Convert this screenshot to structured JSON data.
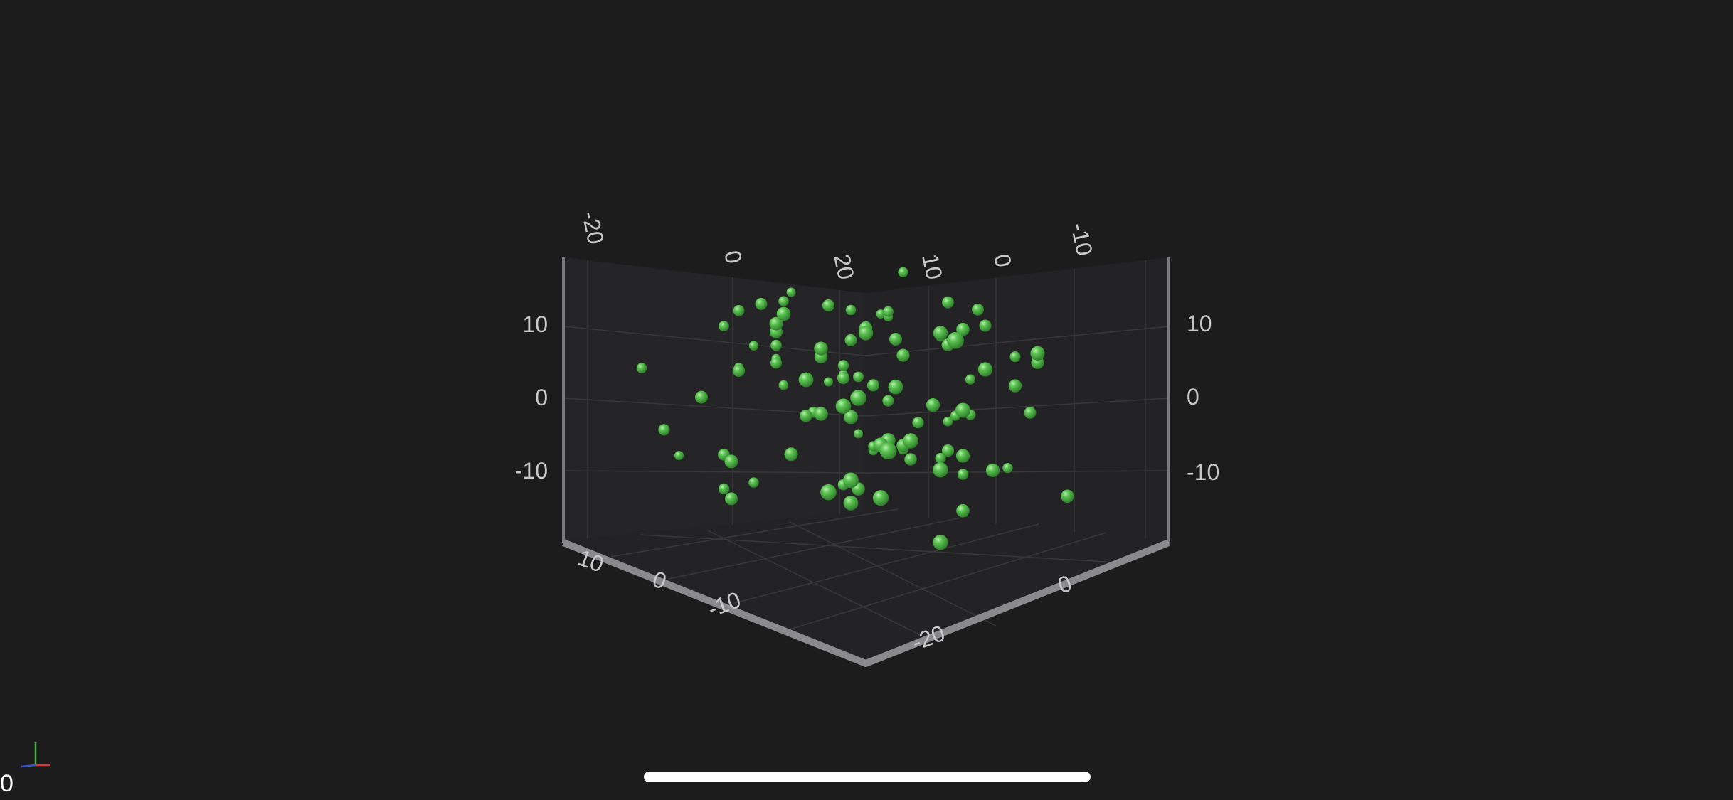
{
  "chart_data": {
    "type": "scatter3d",
    "series": [
      {
        "color": "#4caf50",
        "points_x": [
          -22,
          -18,
          -15,
          -14,
          -13,
          -12,
          -11,
          -10,
          -9,
          -8,
          -8,
          -7,
          -6,
          -6,
          -5,
          -5,
          -4,
          -4,
          -3,
          -3,
          -2,
          -2,
          -1,
          -1,
          0,
          0,
          0,
          1,
          1,
          2,
          2,
          3,
          3,
          4,
          4,
          5,
          5,
          6,
          6,
          7,
          7,
          8,
          8,
          9,
          9,
          10,
          10,
          11,
          12,
          12,
          13,
          14,
          15,
          16,
          18,
          20,
          -17,
          -16,
          -11,
          -10,
          -9,
          -7,
          -5,
          -3,
          -1,
          1,
          3,
          5,
          7,
          9,
          11,
          13,
          15,
          17,
          -14,
          -12,
          -8,
          -6,
          -2,
          0,
          2,
          4,
          6,
          8,
          10,
          12,
          14,
          -13,
          -9,
          -5,
          -1,
          3,
          7,
          11,
          -20,
          -6,
          4,
          14,
          -15,
          -3,
          9
        ],
        "points_y": [
          -12,
          9,
          -5,
          2,
          -14,
          6,
          11,
          -8,
          0,
          4,
          -11,
          13,
          -3,
          8,
          -7,
          1,
          10,
          -13,
          5,
          -2,
          12,
          -9,
          3,
          -6,
          7,
          -1,
          14,
          -10,
          2,
          9,
          -4,
          11,
          -12,
          6,
          -8,
          0,
          13,
          -5,
          4,
          -11,
          8,
          -3,
          10,
          -7,
          1,
          -14,
          5,
          -2,
          12,
          -9,
          3,
          -6,
          7,
          -1,
          9,
          14,
          -4,
          1,
          11,
          -9,
          6,
          -13,
          3,
          10,
          -6,
          0,
          -11,
          7,
          12,
          -3,
          5,
          -8,
          2,
          -12,
          8,
          -1,
          4,
          -10,
          13,
          -5,
          0,
          9,
          -7,
          3,
          11,
          -2,
          6,
          -14,
          1,
          -9,
          8,
          -4,
          12,
          -6,
          2,
          10,
          -12,
          -16,
          4,
          15,
          -8,
          7,
          -3,
          0
        ],
        "points_z": [
          3,
          -8,
          12,
          -2,
          6,
          -14,
          0,
          9,
          -6,
          4,
          -11,
          7,
          1,
          -9,
          13,
          -4,
          8,
          -1,
          -13,
          5,
          10,
          -7,
          2,
          -12,
          6,
          -3,
          11,
          -9,
          0,
          8,
          -5,
          3,
          -10,
          12,
          -2,
          7,
          -6,
          1,
          -14,
          9,
          -4,
          5,
          -8,
          11,
          0,
          -3,
          6,
          -11,
          2,
          10,
          -7,
          4,
          -1,
          13,
          -5,
          8,
          -12,
          1,
          6,
          -9,
          3,
          11,
          -2,
          -6,
          9,
          -13,
          4,
          0,
          -8,
          7,
          12,
          -4,
          2,
          -10,
          5,
          -1,
          9,
          -7,
          3,
          -12,
          8,
          0,
          -5,
          11,
          -3,
          6,
          -9,
          2,
          13,
          -6,
          1,
          -11,
          7,
          -2,
          10,
          -4,
          -15,
          4,
          0,
          -8,
          14,
          -3
        ]
      }
    ],
    "x_ticks": [
      "20",
      "10",
      "0",
      "-10",
      "-20"
    ],
    "y_ticks": [
      "10",
      "0",
      "-10"
    ],
    "z_ticks": [
      "-20",
      "0",
      "-10",
      "0",
      "-20"
    ],
    "xlim": [
      -20,
      20
    ],
    "ylim": [
      -18,
      18
    ],
    "zlim": [
      -20,
      20
    ],
    "grid": true
  },
  "labels": {
    "y_left": [
      "10",
      "0",
      "-10"
    ],
    "y_right": [
      "10",
      "0",
      "-10"
    ],
    "top_left": [
      "-20",
      "0",
      "20"
    ],
    "top_right": [
      "10",
      "0",
      "-10"
    ],
    "bottom_left": [
      "10",
      "0",
      "-10"
    ],
    "bottom_right": [
      "-20",
      "0"
    ]
  },
  "overlay": {
    "fps": "0"
  },
  "colors": {
    "background": "#1c1c1d",
    "point": "#4caf50",
    "axis": "#7a7a7c",
    "grid": "#38383a"
  }
}
